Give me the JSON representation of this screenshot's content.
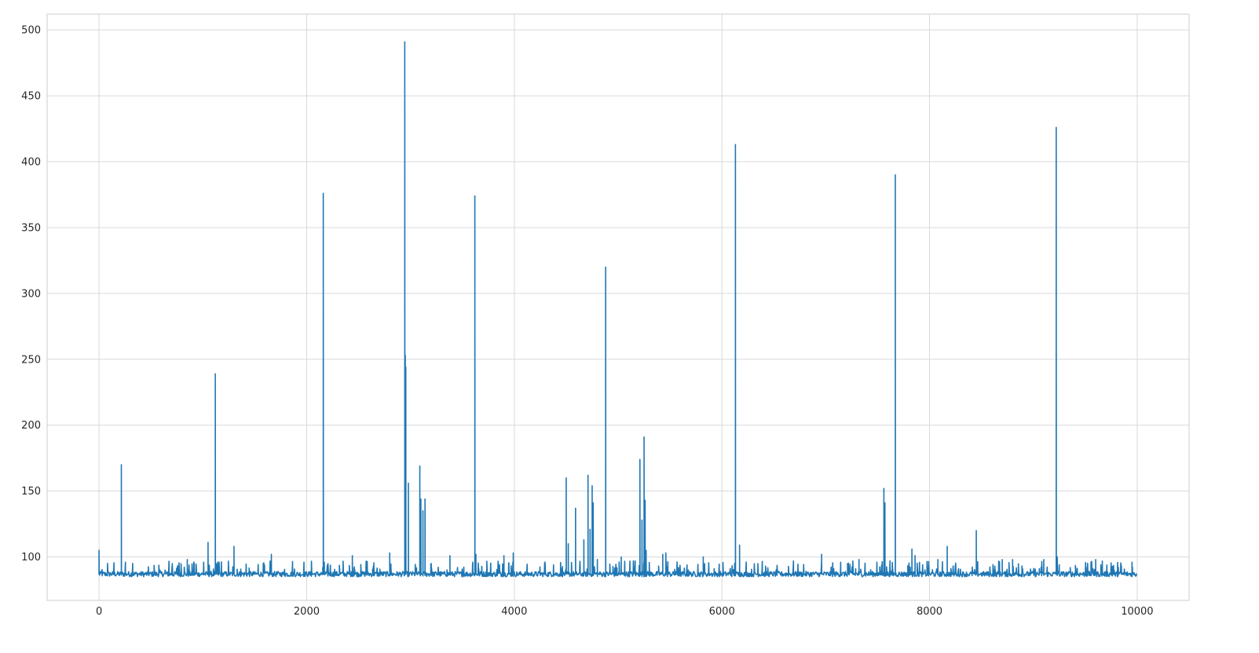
{
  "chart_data": {
    "type": "line",
    "title": "",
    "xlabel": "",
    "ylabel": "",
    "xlim": [
      -500,
      10500
    ],
    "ylim": [
      67,
      512
    ],
    "x_ticks": [
      0,
      2000,
      4000,
      6000,
      8000,
      10000
    ],
    "y_ticks": [
      100,
      150,
      200,
      250,
      300,
      350,
      400,
      450,
      500
    ],
    "x_tick_labels": [
      "0",
      "2000",
      "4000",
      "6000",
      "8000",
      "10000"
    ],
    "y_tick_labels": [
      "100",
      "150",
      "200",
      "250",
      "300",
      "350",
      "400",
      "450",
      "500"
    ],
    "grid": true,
    "legend": "none",
    "x_range": [
      0,
      9999
    ],
    "baseline": 87,
    "noise": [
      85,
      89
    ],
    "series": [
      {
        "color": "#1f77b4",
        "spikes": [
          {
            "x": 0,
            "y": 105
          },
          {
            "x": 215,
            "y": 170
          },
          {
            "x": 850,
            "y": 98
          },
          {
            "x": 1050,
            "y": 111
          },
          {
            "x": 1120,
            "y": 239
          },
          {
            "x": 1300,
            "y": 108
          },
          {
            "x": 1660,
            "y": 102
          },
          {
            "x": 2160,
            "y": 376
          },
          {
            "x": 2170,
            "y": 96
          },
          {
            "x": 2440,
            "y": 101
          },
          {
            "x": 2800,
            "y": 103
          },
          {
            "x": 2945,
            "y": 491
          },
          {
            "x": 2950,
            "y": 253
          },
          {
            "x": 2955,
            "y": 244
          },
          {
            "x": 2980,
            "y": 156
          },
          {
            "x": 3090,
            "y": 169
          },
          {
            "x": 3100,
            "y": 144
          },
          {
            "x": 3120,
            "y": 135
          },
          {
            "x": 3140,
            "y": 144
          },
          {
            "x": 3200,
            "y": 95
          },
          {
            "x": 3380,
            "y": 101
          },
          {
            "x": 3600,
            "y": 96
          },
          {
            "x": 3620,
            "y": 374
          },
          {
            "x": 3630,
            "y": 102
          },
          {
            "x": 3900,
            "y": 101
          },
          {
            "x": 3990,
            "y": 103
          },
          {
            "x": 4500,
            "y": 160
          },
          {
            "x": 4520,
            "y": 110
          },
          {
            "x": 4590,
            "y": 137
          },
          {
            "x": 4670,
            "y": 113
          },
          {
            "x": 4710,
            "y": 162
          },
          {
            "x": 4730,
            "y": 121
          },
          {
            "x": 4750,
            "y": 154
          },
          {
            "x": 4760,
            "y": 141
          },
          {
            "x": 4800,
            "y": 98
          },
          {
            "x": 4880,
            "y": 320
          },
          {
            "x": 5030,
            "y": 100
          },
          {
            "x": 5210,
            "y": 174
          },
          {
            "x": 5230,
            "y": 128
          },
          {
            "x": 5250,
            "y": 191
          },
          {
            "x": 5260,
            "y": 143
          },
          {
            "x": 5270,
            "y": 105
          },
          {
            "x": 5430,
            "y": 102
          },
          {
            "x": 5460,
            "y": 103
          },
          {
            "x": 5820,
            "y": 100
          },
          {
            "x": 6130,
            "y": 413
          },
          {
            "x": 6170,
            "y": 109
          },
          {
            "x": 6960,
            "y": 102
          },
          {
            "x": 7320,
            "y": 98
          },
          {
            "x": 7560,
            "y": 152
          },
          {
            "x": 7570,
            "y": 141
          },
          {
            "x": 7670,
            "y": 390
          },
          {
            "x": 7830,
            "y": 106
          },
          {
            "x": 7860,
            "y": 101
          },
          {
            "x": 8080,
            "y": 98
          },
          {
            "x": 8170,
            "y": 108
          },
          {
            "x": 8450,
            "y": 120
          },
          {
            "x": 8700,
            "y": 98
          },
          {
            "x": 8800,
            "y": 98
          },
          {
            "x": 9100,
            "y": 98
          },
          {
            "x": 9220,
            "y": 426
          },
          {
            "x": 9230,
            "y": 100
          },
          {
            "x": 9600,
            "y": 98
          },
          {
            "x": 9950,
            "y": 96
          }
        ]
      }
    ]
  }
}
